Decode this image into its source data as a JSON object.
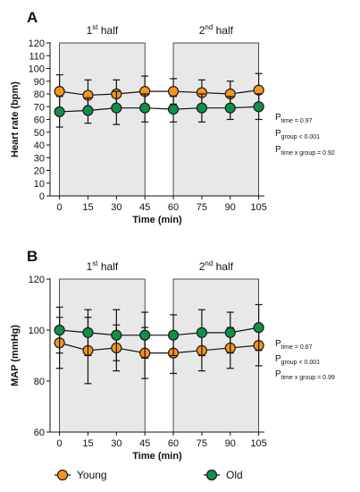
{
  "chart_data": [
    {
      "type": "line",
      "panel_label": "A",
      "x": [
        0,
        15,
        30,
        45,
        60,
        75,
        90,
        105
      ],
      "xlabel": "Time (min)",
      "ylabel": "Heart rate (bpm)",
      "ylim": [
        0,
        120
      ],
      "yticks": [
        0,
        10,
        20,
        30,
        40,
        50,
        60,
        70,
        80,
        90,
        100,
        110,
        120
      ],
      "halves": [
        {
          "num": "1",
          "sup": "st",
          "word": "half",
          "x_range": [
            0,
            45
          ]
        },
        {
          "num": "2",
          "sup": "nd",
          "word": "half",
          "x_range": [
            60,
            105
          ]
        }
      ],
      "series": [
        {
          "name": "Young",
          "color": "#f7941d",
          "values": [
            82,
            79,
            80,
            82,
            82,
            81,
            80,
            83
          ],
          "err": [
            13,
            12,
            11,
            12,
            10,
            10,
            10,
            13
          ]
        },
        {
          "name": "Old",
          "color": "#0f8f4a",
          "values": [
            66,
            67,
            69,
            69,
            68,
            69,
            69,
            70
          ],
          "err": [
            12,
            10,
            13,
            11,
            10,
            11,
            9,
            10
          ]
        }
      ],
      "stats": [
        {
          "p": "P",
          "sub": "time",
          "val": " = 0.97"
        },
        {
          "p": "P",
          "sub": "group",
          "val": " < 0.001"
        },
        {
          "p": "P",
          "sub": "time x group",
          "val": " = 0.92"
        }
      ]
    },
    {
      "type": "line",
      "panel_label": "B",
      "x": [
        0,
        15,
        30,
        45,
        60,
        75,
        90,
        105
      ],
      "xlabel": "Time (min)",
      "ylabel": "MAP (mmHg)",
      "ylim": [
        60,
        120
      ],
      "yticks": [
        60,
        80,
        100,
        120
      ],
      "halves": [
        {
          "num": "1",
          "sup": "st",
          "word": "half",
          "x_range": [
            0,
            45
          ]
        },
        {
          "num": "2",
          "sup": "nd",
          "word": "half",
          "x_range": [
            60,
            105
          ]
        }
      ],
      "series": [
        {
          "name": "Young",
          "color": "#f7941d",
          "values": [
            95,
            92,
            93,
            91,
            91,
            92,
            93,
            94
          ],
          "err": [
            10,
            13,
            9,
            10,
            8,
            8,
            8,
            8
          ]
        },
        {
          "name": "Old",
          "color": "#0f8f4a",
          "values": [
            100,
            99,
            98,
            98,
            98,
            99,
            99,
            101
          ],
          "err": [
            9,
            9,
            10,
            9,
            8,
            9,
            8,
            9
          ]
        }
      ],
      "stats": [
        {
          "p": "P",
          "sub": "time",
          "val": " = 0.67"
        },
        {
          "p": "P",
          "sub": "group",
          "val": " < 0.001"
        },
        {
          "p": "P",
          "sub": "time x group",
          "val": " = 0.99"
        }
      ]
    }
  ],
  "legend": [
    {
      "name": "Young",
      "color": "#f7941d"
    },
    {
      "name": "Old",
      "color": "#0f8f4a"
    }
  ],
  "colors": {
    "shade": "#e8e8e8",
    "marker_edge": "#1a1a1a"
  }
}
